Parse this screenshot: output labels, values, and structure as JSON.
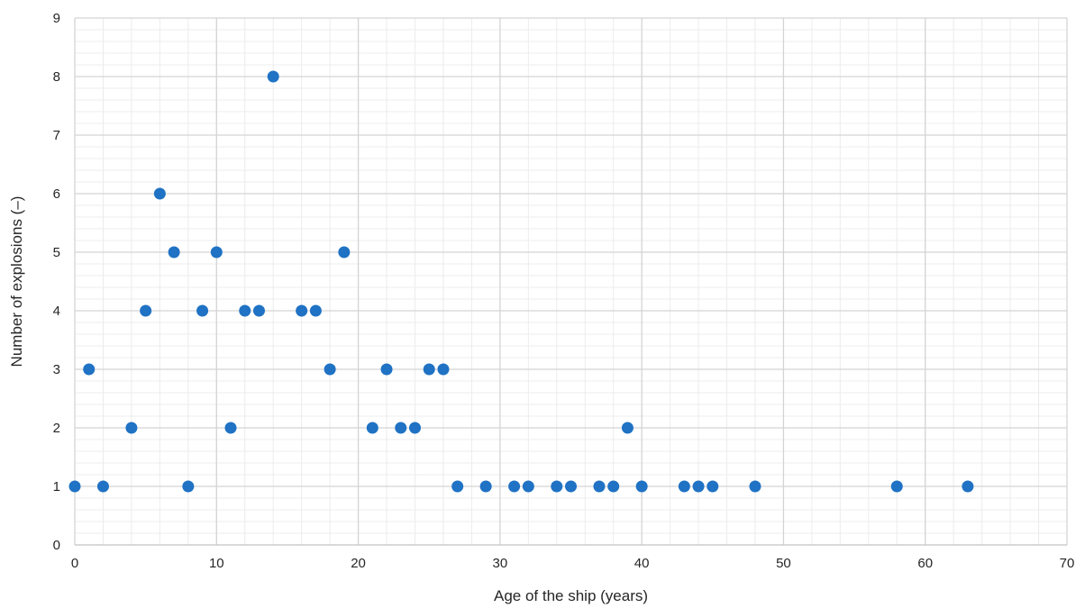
{
  "chart_data": {
    "type": "scatter",
    "title": "",
    "xlabel": "Age of the ship (years)",
    "ylabel": "Number of explosions (–)",
    "xlim": [
      0,
      70
    ],
    "ylim": [
      0,
      9
    ],
    "x_major_step": 10,
    "y_major_step": 1,
    "x_minor_per_major": 5,
    "y_minor_per_major": 5,
    "grid": true,
    "marker_color": "#1f72c4",
    "series": [
      {
        "points": [
          [
            0,
            1
          ],
          [
            1,
            3
          ],
          [
            2,
            1
          ],
          [
            4,
            2
          ],
          [
            5,
            4
          ],
          [
            6,
            6
          ],
          [
            7,
            5
          ],
          [
            8,
            1
          ],
          [
            9,
            4
          ],
          [
            10,
            5
          ],
          [
            11,
            2
          ],
          [
            12,
            4
          ],
          [
            13,
            4
          ],
          [
            14,
            8
          ],
          [
            16,
            4
          ],
          [
            17,
            4
          ],
          [
            18,
            3
          ],
          [
            19,
            5
          ],
          [
            21,
            2
          ],
          [
            22,
            3
          ],
          [
            23,
            2
          ],
          [
            24,
            2
          ],
          [
            25,
            3
          ],
          [
            26,
            3
          ],
          [
            27,
            1
          ],
          [
            29,
            1
          ],
          [
            31,
            1
          ],
          [
            32,
            1
          ],
          [
            34,
            1
          ],
          [
            35,
            1
          ],
          [
            37,
            1
          ],
          [
            38,
            1
          ],
          [
            39,
            2
          ],
          [
            40,
            1
          ],
          [
            43,
            1
          ],
          [
            44,
            1
          ],
          [
            45,
            1
          ],
          [
            48,
            1
          ],
          [
            58,
            1
          ],
          [
            63,
            1
          ]
        ]
      }
    ]
  }
}
